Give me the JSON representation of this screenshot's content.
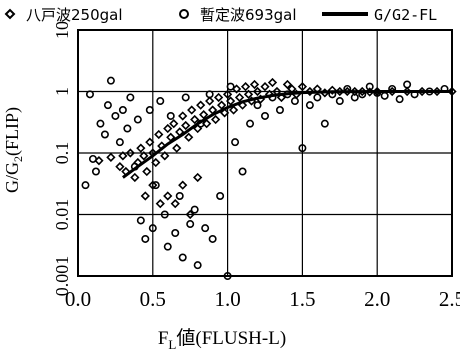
{
  "chart_data": {
    "type": "scatter",
    "xlabel": "FL値(FLUSH-L)",
    "xlabel_main": "F",
    "xlabel_sub": "L",
    "xlabel_rest": "値(FLUSH-L)",
    "ylabel": "G/G2(FLIP)",
    "ylabel_pre": "G/G",
    "ylabel_sub": "2",
    "ylabel_post": "(FLIP)",
    "x_scale": "linear",
    "y_scale": "log",
    "xlim": [
      0.0,
      2.5
    ],
    "ylim": [
      0.001,
      10
    ],
    "x_ticks": [
      "0.0",
      "0.5",
      "1.0",
      "1.5",
      "2.0",
      "2.5"
    ],
    "y_ticks": [
      "0.001",
      "0.01",
      "0.1",
      "1",
      "10"
    ],
    "grid": true,
    "legend_position": "top",
    "series": [
      {
        "name": "八戸波250gal",
        "marker": "diamond",
        "points": [
          [
            0.14,
            0.075
          ],
          [
            0.22,
            0.085
          ],
          [
            0.28,
            0.06
          ],
          [
            0.3,
            0.09
          ],
          [
            0.32,
            0.05
          ],
          [
            0.35,
            0.1
          ],
          [
            0.38,
            0.04
          ],
          [
            0.4,
            0.07
          ],
          [
            0.42,
            0.12
          ],
          [
            0.44,
            0.09
          ],
          [
            0.46,
            0.05
          ],
          [
            0.48,
            0.15
          ],
          [
            0.5,
            0.1
          ],
          [
            0.52,
            0.07
          ],
          [
            0.54,
            0.2
          ],
          [
            0.56,
            0.13
          ],
          [
            0.58,
            0.09
          ],
          [
            0.6,
            0.25
          ],
          [
            0.62,
            0.18
          ],
          [
            0.64,
            0.3
          ],
          [
            0.66,
            0.12
          ],
          [
            0.68,
            0.22
          ],
          [
            0.7,
            0.4
          ],
          [
            0.72,
            0.28
          ],
          [
            0.74,
            0.18
          ],
          [
            0.76,
            0.5
          ],
          [
            0.78,
            0.35
          ],
          [
            0.8,
            0.25
          ],
          [
            0.82,
            0.6
          ],
          [
            0.84,
            0.42
          ],
          [
            0.86,
            0.3
          ],
          [
            0.88,
            0.7
          ],
          [
            0.9,
            0.5
          ],
          [
            0.92,
            0.35
          ],
          [
            0.94,
            0.8
          ],
          [
            0.96,
            0.6
          ],
          [
            0.98,
            0.45
          ],
          [
            1.0,
            0.9
          ],
          [
            1.02,
            0.7
          ],
          [
            1.04,
            0.5
          ],
          [
            1.06,
            1.1
          ],
          [
            1.08,
            0.8
          ],
          [
            1.1,
            0.6
          ],
          [
            1.12,
            1.2
          ],
          [
            1.14,
            0.9
          ],
          [
            1.16,
            0.7
          ],
          [
            1.18,
            1.3
          ],
          [
            1.2,
            1.0
          ],
          [
            1.22,
            0.75
          ],
          [
            1.25,
            1.2
          ],
          [
            1.28,
            0.9
          ],
          [
            1.3,
            1.4
          ],
          [
            1.33,
            1.0
          ],
          [
            1.36,
            0.8
          ],
          [
            1.4,
            1.3
          ],
          [
            1.43,
            1.1
          ],
          [
            1.46,
            0.9
          ],
          [
            1.5,
            1.2
          ],
          [
            1.55,
            1.0
          ],
          [
            1.6,
            1.1
          ],
          [
            1.65,
            0.95
          ],
          [
            1.7,
            1.05
          ],
          [
            1.75,
            1.0
          ],
          [
            1.8,
            1.0
          ],
          [
            1.85,
            1.0
          ],
          [
            1.9,
            1.0
          ],
          [
            1.95,
            0.98
          ],
          [
            2.0,
            1.0
          ],
          [
            2.1,
            1.0
          ],
          [
            2.2,
            1.0
          ],
          [
            2.3,
            1.0
          ],
          [
            2.4,
            1.0
          ],
          [
            2.5,
            1.0
          ],
          [
            0.6,
            0.02
          ],
          [
            0.65,
            0.015
          ],
          [
            0.7,
            0.03
          ],
          [
            0.75,
            0.01
          ],
          [
            0.8,
            0.04
          ],
          [
            0.5,
            0.03
          ],
          [
            0.45,
            0.02
          ],
          [
            0.55,
            0.015
          ]
        ]
      },
      {
        "name": "暫定波693gal",
        "marker": "circle",
        "points": [
          [
            0.05,
            0.03
          ],
          [
            0.08,
            0.9
          ],
          [
            0.1,
            0.08
          ],
          [
            0.12,
            0.05
          ],
          [
            0.15,
            0.3
          ],
          [
            0.18,
            0.2
          ],
          [
            0.2,
            0.6
          ],
          [
            0.22,
            1.5
          ],
          [
            0.25,
            0.4
          ],
          [
            0.28,
            0.15
          ],
          [
            0.3,
            0.5
          ],
          [
            0.33,
            0.25
          ],
          [
            0.35,
            0.8
          ],
          [
            0.38,
            0.06
          ],
          [
            0.4,
            0.35
          ],
          [
            0.42,
            0.008
          ],
          [
            0.45,
            0.004
          ],
          [
            0.48,
            0.5
          ],
          [
            0.5,
            0.006
          ],
          [
            0.52,
            0.03
          ],
          [
            0.55,
            0.7
          ],
          [
            0.58,
            0.01
          ],
          [
            0.6,
            0.003
          ],
          [
            0.62,
            0.4
          ],
          [
            0.65,
            0.005
          ],
          [
            0.68,
            0.02
          ],
          [
            0.7,
            0.002
          ],
          [
            0.72,
            0.8
          ],
          [
            0.75,
            0.007
          ],
          [
            0.78,
            0.012
          ],
          [
            0.8,
            0.0015
          ],
          [
            0.82,
            0.3
          ],
          [
            0.85,
            0.006
          ],
          [
            0.88,
            0.9
          ],
          [
            0.9,
            0.004
          ],
          [
            0.95,
            0.02
          ],
          [
            1.0,
            0.001
          ],
          [
            1.02,
            1.2
          ],
          [
            1.05,
            0.15
          ],
          [
            1.1,
            0.05
          ],
          [
            1.15,
            0.3
          ],
          [
            1.2,
            0.6
          ],
          [
            1.25,
            0.4
          ],
          [
            1.3,
            0.8
          ],
          [
            1.35,
            0.5
          ],
          [
            1.4,
            0.9
          ],
          [
            1.45,
            0.7
          ],
          [
            1.5,
            0.12
          ],
          [
            1.55,
            0.6
          ],
          [
            1.6,
            0.8
          ],
          [
            1.65,
            0.3
          ],
          [
            1.7,
            0.9
          ],
          [
            1.75,
            0.7
          ],
          [
            1.8,
            1.1
          ],
          [
            1.85,
            0.8
          ],
          [
            1.9,
            0.9
          ],
          [
            1.95,
            1.2
          ],
          [
            2.0,
            0.95
          ],
          [
            2.05,
            0.85
          ],
          [
            2.1,
            1.1
          ],
          [
            2.15,
            0.75
          ],
          [
            2.2,
            1.3
          ],
          [
            2.25,
            0.9
          ],
          [
            2.35,
            1.0
          ],
          [
            2.45,
            1.1
          ]
        ]
      },
      {
        "name": "G/G2-FL",
        "marker": "line",
        "points": [
          [
            0.3,
            0.04
          ],
          [
            0.4,
            0.06
          ],
          [
            0.5,
            0.09
          ],
          [
            0.6,
            0.14
          ],
          [
            0.7,
            0.2
          ],
          [
            0.8,
            0.3
          ],
          [
            0.9,
            0.42
          ],
          [
            1.0,
            0.55
          ],
          [
            1.1,
            0.68
          ],
          [
            1.2,
            0.78
          ],
          [
            1.3,
            0.86
          ],
          [
            1.4,
            0.92
          ],
          [
            1.5,
            0.96
          ],
          [
            1.7,
            0.99
          ],
          [
            2.0,
            1.0
          ],
          [
            2.5,
            1.0
          ]
        ]
      }
    ]
  }
}
